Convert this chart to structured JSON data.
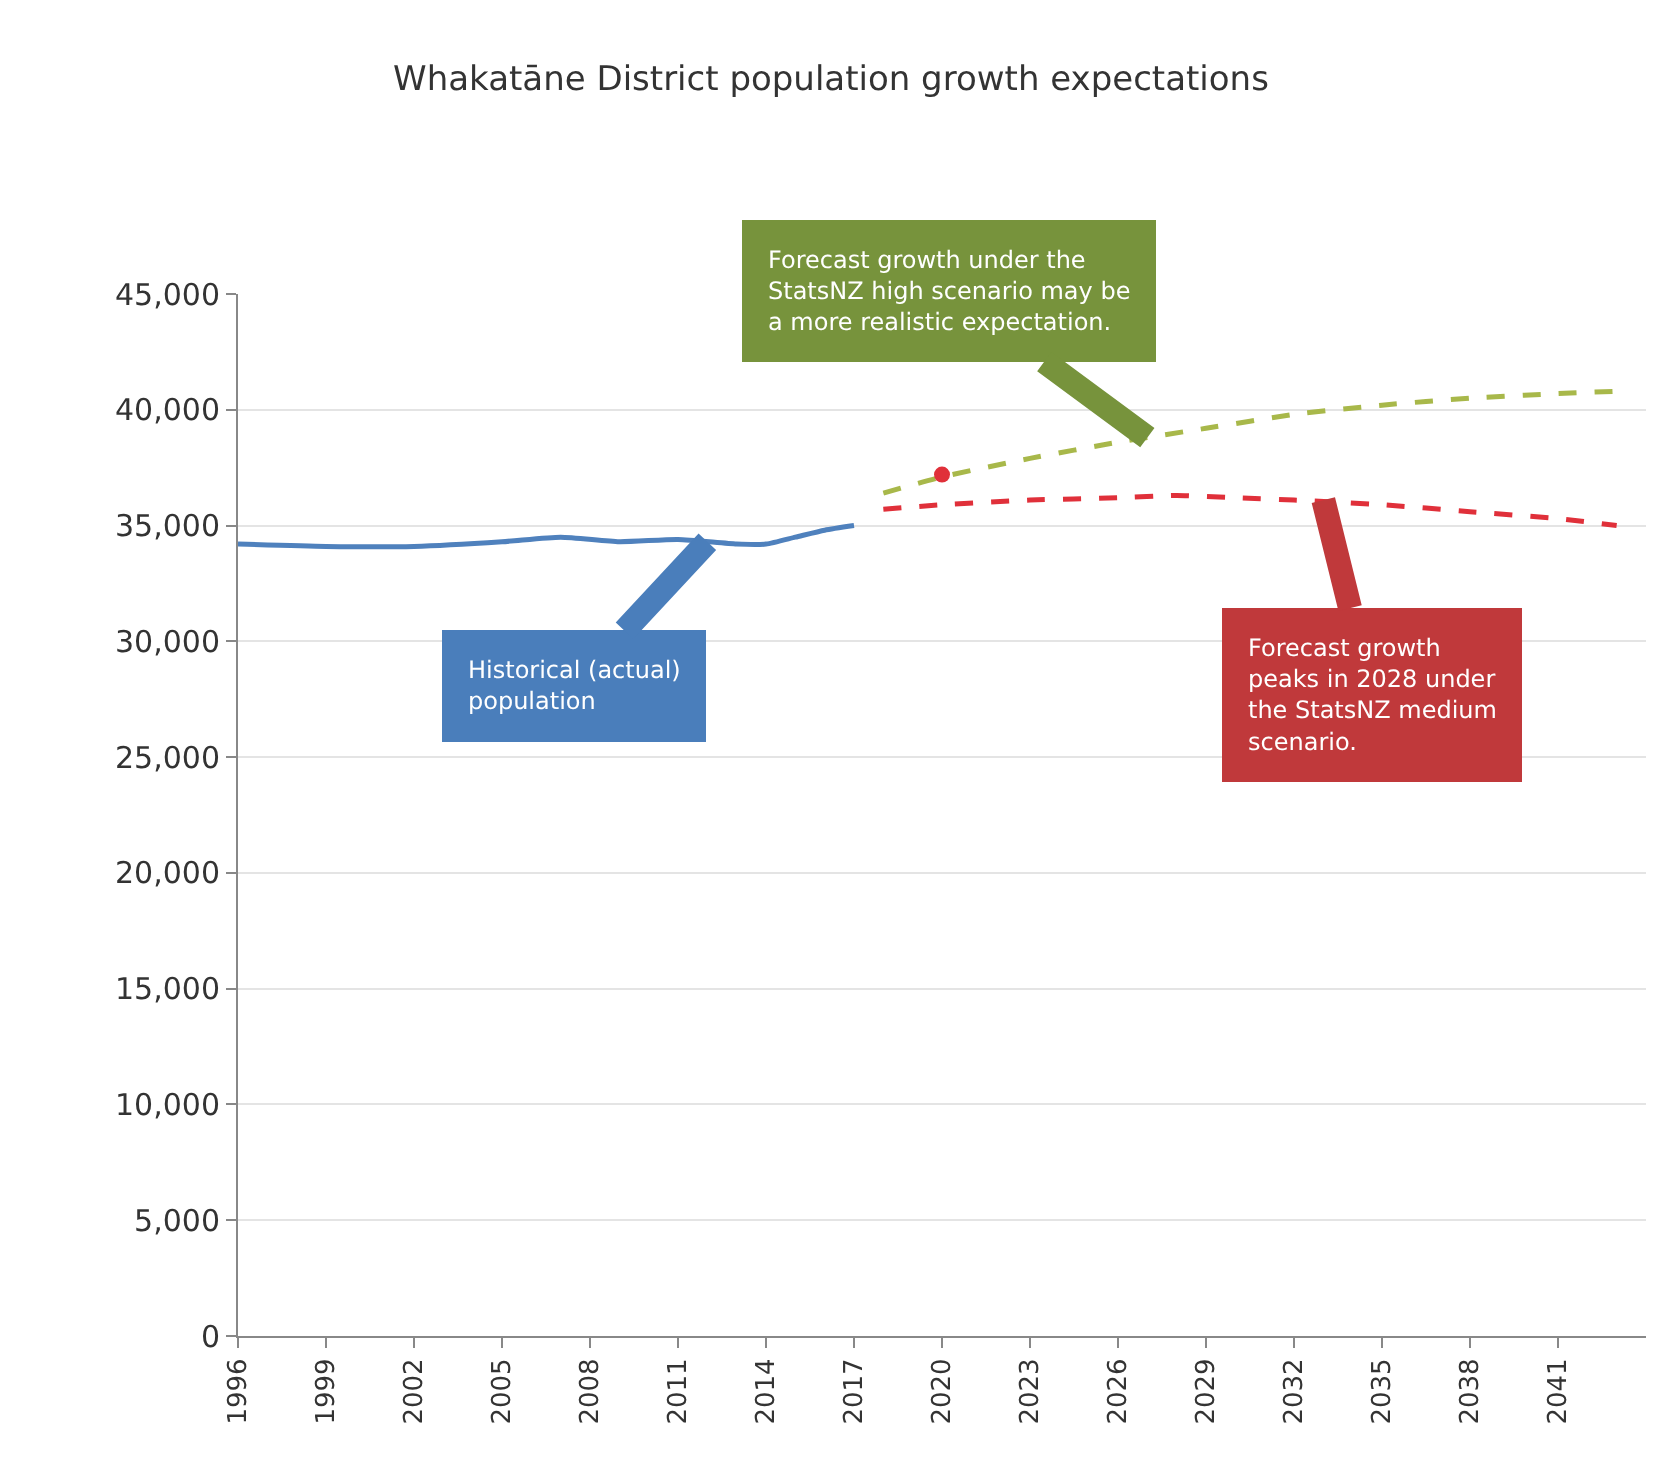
{
  "chart_data": {
    "type": "line",
    "title": "Whakatāne District population growth expectations",
    "xlim": [
      1996,
      2044
    ],
    "xticks": [
      1996,
      1999,
      2002,
      2005,
      2008,
      2011,
      2014,
      2017,
      2020,
      2023,
      2026,
      2029,
      2032,
      2035,
      2038,
      2041
    ],
    "ylim": [
      0,
      45000
    ],
    "yticks": [
      {
        "value": 0,
        "label": "0"
      },
      {
        "value": 5000,
        "label": "5,000"
      },
      {
        "value": 10000,
        "label": "10,000"
      },
      {
        "value": 15000,
        "label": "15,000"
      },
      {
        "value": 20000,
        "label": "20,000"
      },
      {
        "value": 25000,
        "label": "25,000"
      },
      {
        "value": 30000,
        "label": "30,000"
      },
      {
        "value": 35000,
        "label": "35,000"
      },
      {
        "value": 40000,
        "label": "40,000"
      },
      {
        "value": 45000,
        "label": "45,000"
      }
    ],
    "grid": "y",
    "series": [
      {
        "color": "#4f81bd",
        "line_style": "solid",
        "x": [
          1996,
          1999,
          2002,
          2005,
          2007,
          2009,
          2011,
          2013,
          2014,
          2015,
          2016,
          2017
        ],
        "values": [
          34200,
          34100,
          34100,
          34300,
          34500,
          34300,
          34400,
          34200,
          34200,
          34500,
          34800,
          35000
        ]
      },
      {
        "color": "#a8b84a",
        "line_style": "dashed",
        "x": [
          2018,
          2020,
          2023,
          2026,
          2029,
          2032,
          2035,
          2038,
          2041,
          2043
        ],
        "values": [
          36400,
          37100,
          37900,
          38600,
          39200,
          39800,
          40200,
          40500,
          40700,
          40800
        ]
      },
      {
        "color": "#e0303a",
        "line_style": "dashed",
        "x": [
          2018,
          2020,
          2023,
          2026,
          2028,
          2030,
          2032,
          2035,
          2038,
          2041,
          2043
        ],
        "values": [
          35700,
          35900,
          36100,
          36200,
          36300,
          36200,
          36100,
          35900,
          35600,
          35300,
          35000
        ]
      },
      {
        "type": "scatter",
        "marker": "circle",
        "color": "#e0303a",
        "x": [
          2020
        ],
        "values": [
          37200
        ]
      }
    ],
    "annotations": [
      {
        "text": "Forecast growth under the\nStatsNZ high scenario may be\na more realistic expectation.",
        "x": 2027,
        "y": 38800
      },
      {
        "text": "Historical (actual)\npopulation",
        "x": 2012,
        "y": 34300
      },
      {
        "text": "Forecast growth\npeaks in 2028 under\nthe StatsNZ medium\nscenario.",
        "x": 2033,
        "y": 36100
      }
    ]
  }
}
